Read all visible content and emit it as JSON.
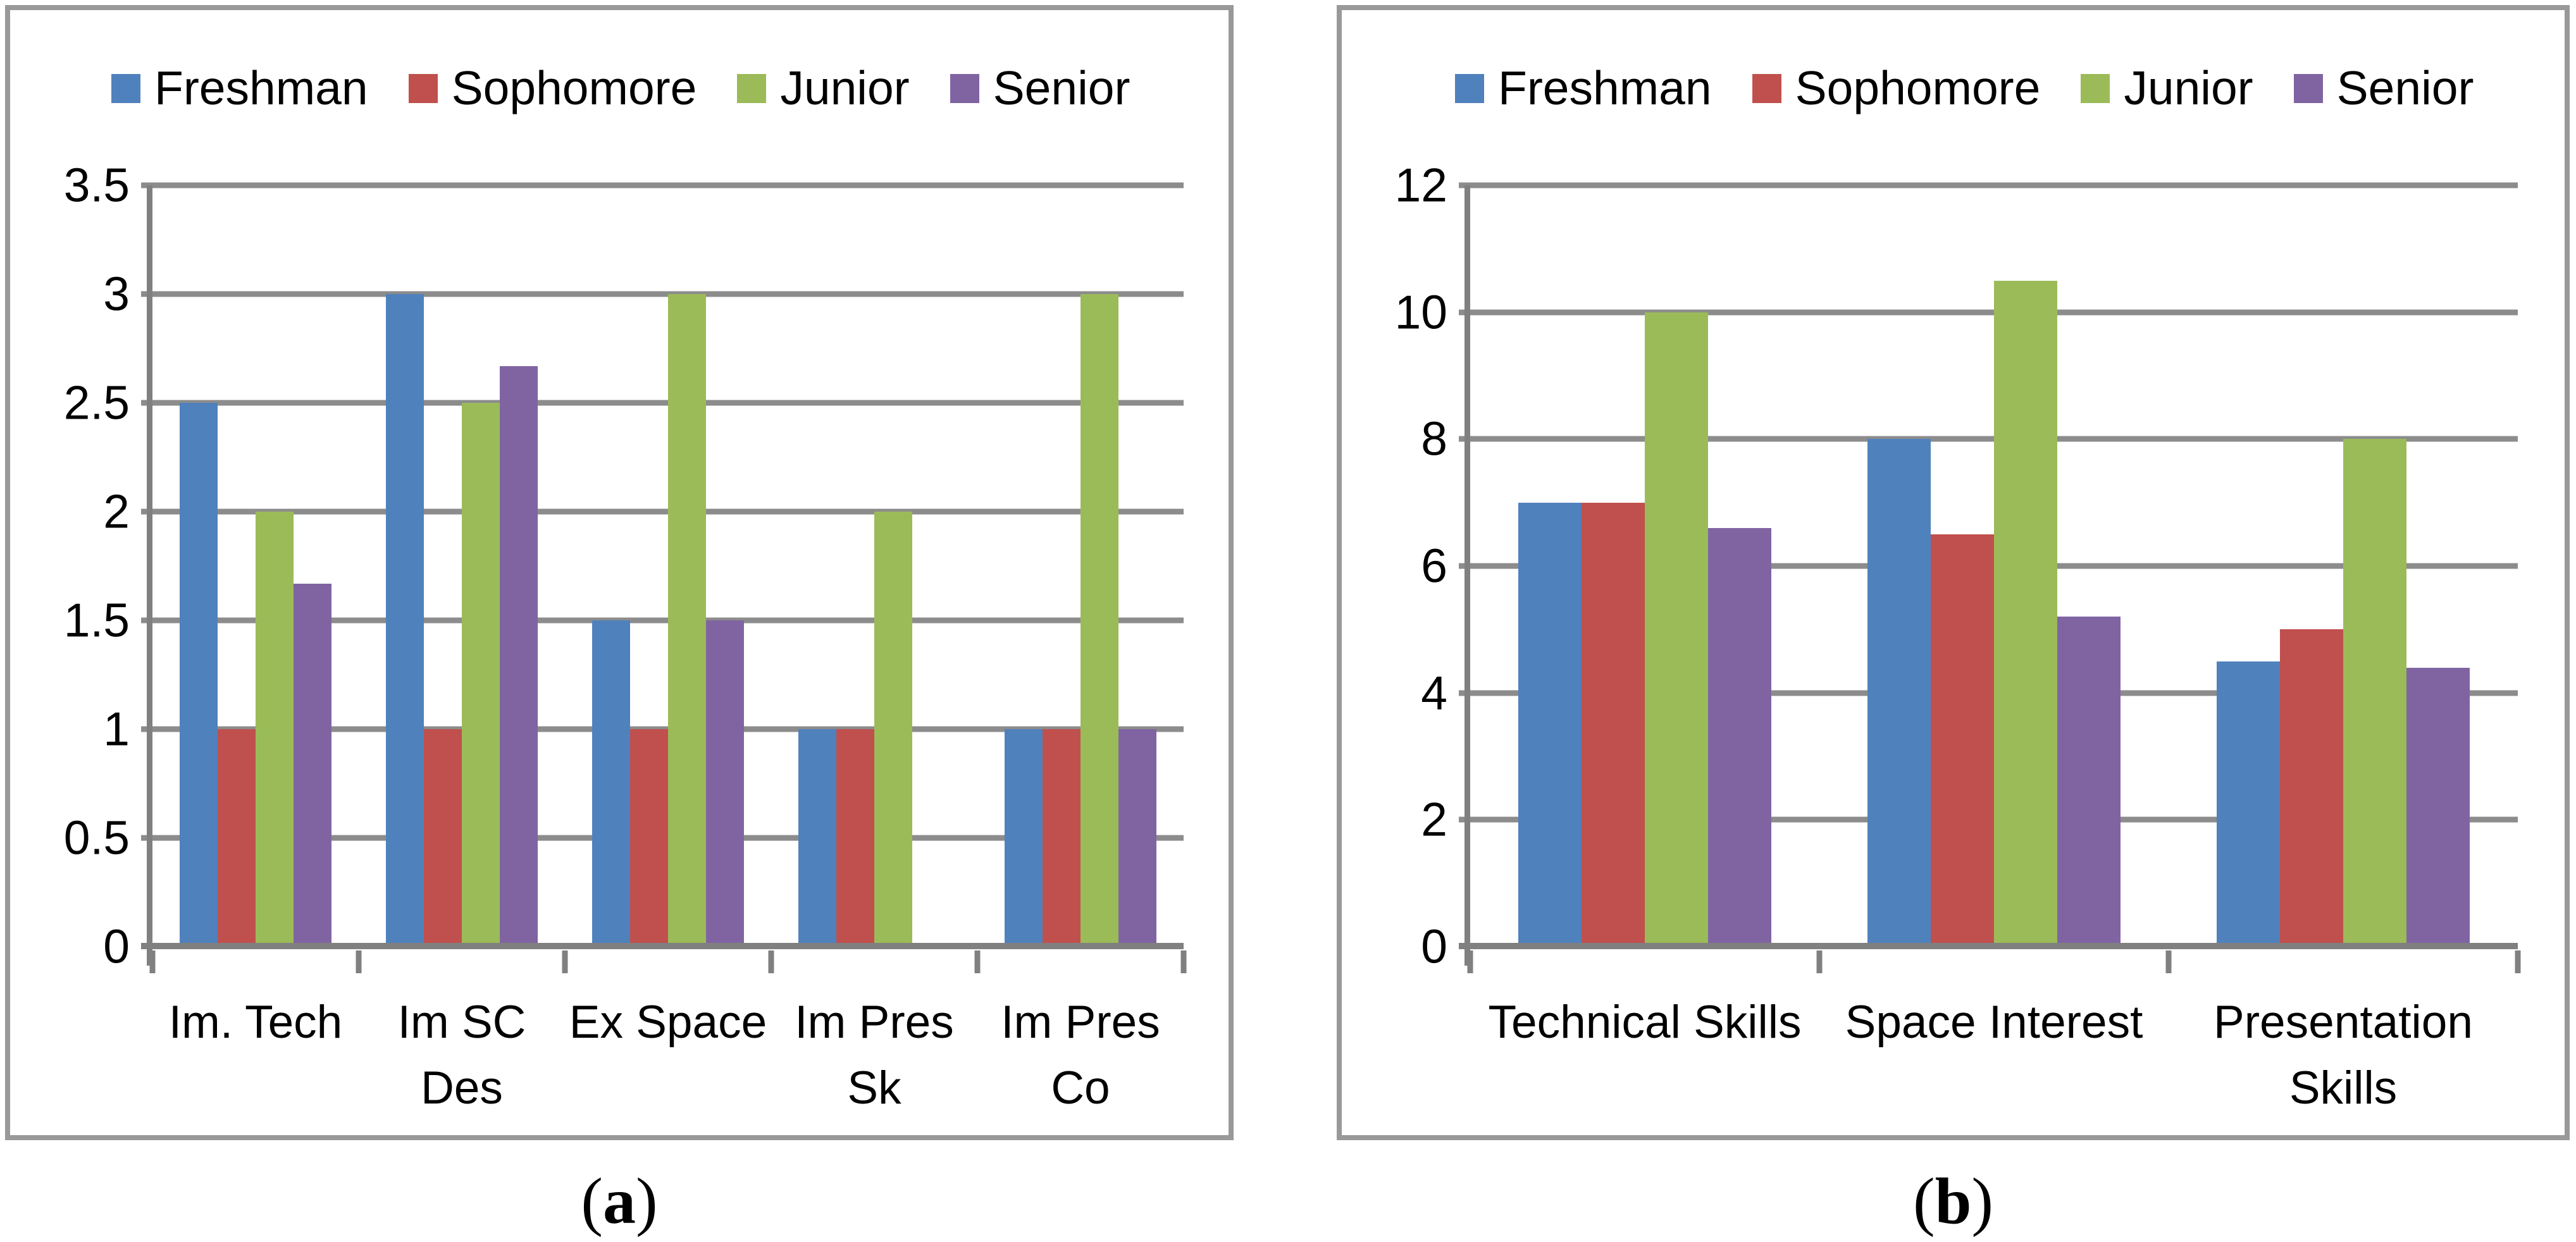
{
  "figure": {
    "colors": {
      "freshman": "#4F81BD",
      "sophomore": "#C0504D",
      "junior": "#9BBB59",
      "senior": "#8064A2",
      "gridline": "#8C8C8C",
      "axis": "#808080",
      "panel_border": "#999999",
      "background": "#FFFFFF",
      "text": "#000000"
    },
    "panels": [
      {
        "caption": {
          "open": "(",
          "letter": "a",
          "close": ")"
        }
      },
      {
        "caption": {
          "open": "(",
          "letter": "b",
          "close": ")"
        }
      }
    ]
  },
  "chart_data": [
    {
      "type": "bar",
      "panel": "a",
      "title": "",
      "xlabel": "",
      "ylabel": "",
      "grid": true,
      "legend_position": "top",
      "categories": [
        "Im. Tech",
        "Im SC\nDes",
        "Ex Space",
        "Im Pres\nSk",
        "Im Pres\nCo"
      ],
      "series": [
        {
          "name": "Freshman",
          "color": "#4F81BD",
          "values": [
            2.5,
            3,
            1.5,
            1,
            1
          ]
        },
        {
          "name": "Sophomore",
          "color": "#C0504D",
          "values": [
            1,
            1,
            1,
            1,
            1
          ]
        },
        {
          "name": "Junior",
          "color": "#9BBB59",
          "values": [
            2,
            2.5,
            3,
            2,
            3
          ]
        },
        {
          "name": "Senior",
          "color": "#8064A2",
          "values": [
            1.67,
            2.67,
            1.5,
            0,
            1
          ]
        }
      ],
      "ylim": [
        0,
        3.5
      ],
      "ytick_values": [
        0,
        0.5,
        1,
        1.5,
        2,
        2.5,
        3,
        3.5
      ],
      "ytick_labels": [
        "0",
        "0.5",
        "1",
        "1.5",
        "2",
        "2.5",
        "3",
        "3.5"
      ]
    },
    {
      "type": "bar",
      "panel": "b",
      "title": "",
      "xlabel": "",
      "ylabel": "",
      "grid": true,
      "legend_position": "top",
      "categories": [
        "Technical Skills",
        "Space Interest",
        "Presentation\nSkills"
      ],
      "series": [
        {
          "name": "Freshman",
          "color": "#4F81BD",
          "values": [
            7,
            8,
            4.5
          ]
        },
        {
          "name": "Sophomore",
          "color": "#C0504D",
          "values": [
            7,
            6.5,
            5
          ]
        },
        {
          "name": "Junior",
          "color": "#9BBB59",
          "values": [
            10,
            10.5,
            8
          ]
        },
        {
          "name": "Senior",
          "color": "#8064A2",
          "values": [
            6.6,
            5.2,
            4.4
          ]
        }
      ],
      "ylim": [
        0,
        12
      ],
      "ytick_values": [
        0,
        2,
        4,
        6,
        8,
        10,
        12
      ],
      "ytick_labels": [
        "0",
        "2",
        "4",
        "6",
        "8",
        "10",
        "12"
      ]
    }
  ]
}
